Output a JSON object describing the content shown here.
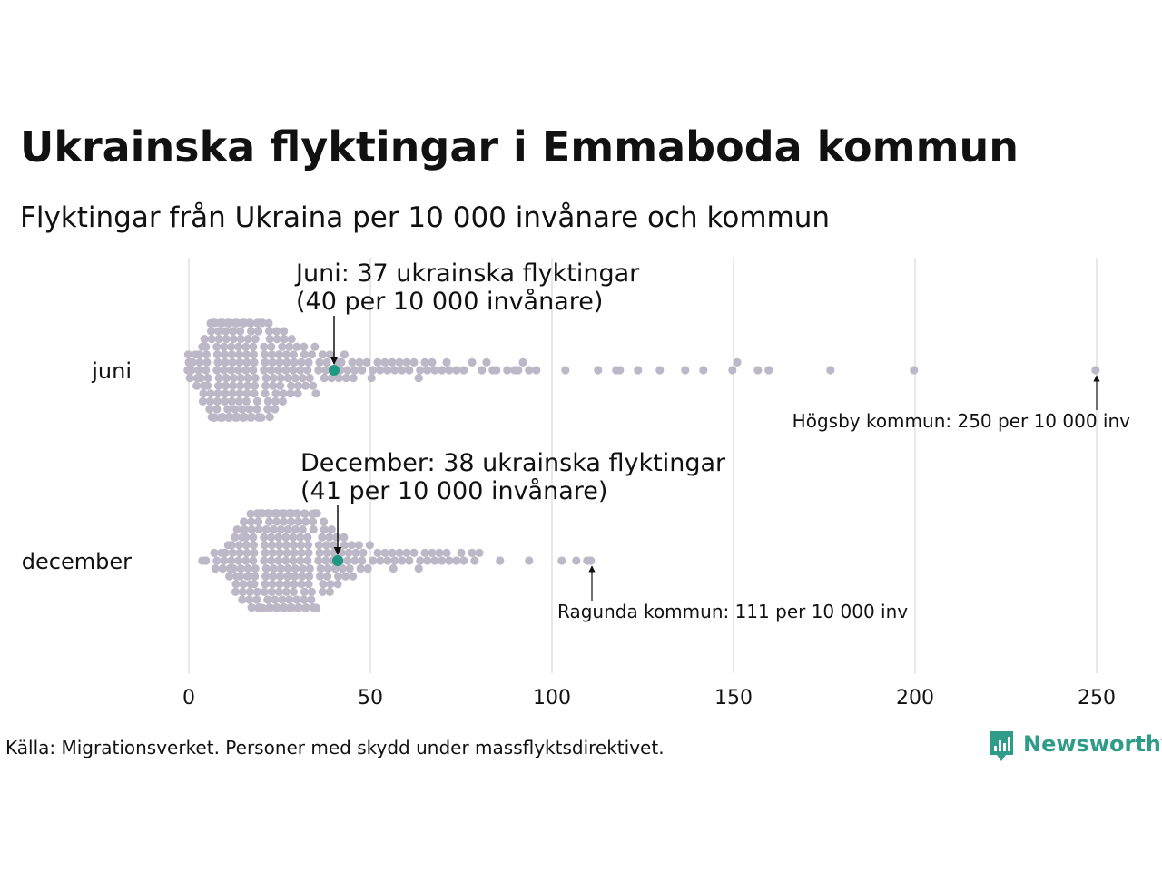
{
  "chart_data": {
    "type": "scatter",
    "title": "Ukrainska flyktingar i Emmaboda kommun",
    "subtitle": "Flyktingar från Ukraina per 10 000 invånare och kommun",
    "xlim": [
      0,
      250
    ],
    "xticks": [
      0,
      50,
      100,
      150,
      200,
      250
    ],
    "grid": true,
    "categories": [
      "juni",
      "december"
    ],
    "colors": {
      "dots": "#bcb8c8",
      "highlight": "#1e9a84",
      "grid": "#d0d0d0"
    },
    "series": [
      {
        "category": "juni",
        "highlight_value": 40,
        "highlight_label_line1": "Juni: 37 ukrainska flyktingar",
        "highlight_label_line2": "(40 per 10 000 invånare)",
        "extreme_value": 250,
        "extreme_label": "Högsby kommun: 250 per 10 000 inv",
        "values": [
          0,
          0,
          0,
          0,
          1,
          1,
          2,
          2,
          2,
          3,
          3,
          3,
          3,
          4,
          4,
          4,
          4,
          4,
          5,
          5,
          5,
          5,
          5,
          5,
          6,
          6,
          6,
          6,
          6,
          6,
          6,
          7,
          7,
          7,
          7,
          7,
          7,
          7,
          7,
          8,
          8,
          8,
          8,
          8,
          8,
          8,
          8,
          8,
          8,
          8,
          9,
          9,
          9,
          9,
          9,
          9,
          9,
          9,
          9,
          9,
          10,
          10,
          10,
          10,
          10,
          10,
          10,
          10,
          10,
          10,
          11,
          11,
          11,
          11,
          11,
          11,
          11,
          11,
          11,
          12,
          12,
          12,
          12,
          12,
          12,
          12,
          12,
          12,
          12,
          13,
          13,
          13,
          13,
          13,
          13,
          13,
          13,
          13,
          14,
          14,
          14,
          14,
          14,
          14,
          14,
          14,
          14,
          14,
          15,
          15,
          15,
          15,
          15,
          15,
          15,
          15,
          15,
          16,
          16,
          16,
          16,
          16,
          16,
          16,
          16,
          16,
          17,
          17,
          17,
          17,
          17,
          17,
          17,
          17,
          18,
          18,
          18,
          18,
          18,
          18,
          18,
          18,
          19,
          19,
          19,
          19,
          19,
          19,
          19,
          20,
          20,
          20,
          20,
          20,
          20,
          20,
          21,
          21,
          21,
          21,
          21,
          21,
          21,
          22,
          22,
          22,
          22,
          22,
          22,
          23,
          23,
          23,
          23,
          23,
          23,
          24,
          24,
          24,
          24,
          24,
          25,
          25,
          25,
          25,
          25,
          26,
          26,
          26,
          26,
          26,
          27,
          27,
          27,
          27,
          28,
          28,
          28,
          28,
          29,
          29,
          29,
          29,
          30,
          30,
          30,
          31,
          31,
          31,
          32,
          32,
          32,
          33,
          33,
          33,
          34,
          34,
          35,
          35,
          36,
          36,
          37,
          37,
          38,
          38,
          39,
          39,
          40,
          41,
          41,
          42,
          42,
          43,
          43,
          44,
          45,
          45,
          46,
          47,
          48,
          49,
          50,
          51,
          52,
          53,
          54,
          55,
          56,
          57,
          58,
          59,
          60,
          61,
          62,
          63,
          64,
          65,
          66,
          67,
          68,
          70,
          71,
          72,
          74,
          76,
          78,
          81,
          82,
          84,
          85,
          88,
          90,
          91,
          92,
          94,
          96,
          104,
          113,
          118,
          119,
          124,
          130,
          137,
          142,
          150,
          151,
          157,
          160,
          177,
          200,
          250
        ]
      },
      {
        "category": "december",
        "highlight_value": 41,
        "highlight_label_line1": "December: 38 ukrainska flyktingar",
        "highlight_label_line2": "(41 per 10 000 invånare)",
        "extreme_value": 111,
        "extreme_label": "Ragunda kommun: 111 per 10 000 inv",
        "values": [
          4,
          5,
          7,
          7,
          8,
          9,
          9,
          10,
          10,
          11,
          11,
          11,
          12,
          12,
          12,
          12,
          13,
          13,
          13,
          13,
          13,
          14,
          14,
          14,
          14,
          14,
          15,
          15,
          15,
          15,
          15,
          15,
          16,
          16,
          16,
          16,
          16,
          16,
          17,
          17,
          17,
          17,
          17,
          17,
          17,
          18,
          18,
          18,
          18,
          18,
          18,
          18,
          19,
          19,
          19,
          19,
          19,
          19,
          19,
          19,
          20,
          20,
          20,
          20,
          20,
          20,
          20,
          20,
          21,
          21,
          21,
          21,
          21,
          21,
          21,
          21,
          21,
          22,
          22,
          22,
          22,
          22,
          22,
          22,
          22,
          22,
          23,
          23,
          23,
          23,
          23,
          23,
          23,
          23,
          23,
          24,
          24,
          24,
          24,
          24,
          24,
          24,
          24,
          24,
          25,
          25,
          25,
          25,
          25,
          25,
          25,
          25,
          25,
          26,
          26,
          26,
          26,
          26,
          26,
          26,
          26,
          26,
          27,
          27,
          27,
          27,
          27,
          27,
          27,
          27,
          27,
          28,
          28,
          28,
          28,
          28,
          28,
          28,
          28,
          28,
          28,
          29,
          29,
          29,
          29,
          29,
          29,
          29,
          29,
          29,
          30,
          30,
          30,
          30,
          30,
          30,
          30,
          30,
          31,
          31,
          31,
          31,
          31,
          31,
          31,
          31,
          32,
          32,
          32,
          32,
          32,
          32,
          32,
          33,
          33,
          33,
          33,
          33,
          33,
          33,
          34,
          34,
          34,
          34,
          34,
          34,
          35,
          35,
          35,
          35,
          35,
          35,
          36,
          36,
          36,
          36,
          36,
          37,
          37,
          37,
          37,
          37,
          38,
          38,
          38,
          38,
          38,
          39,
          39,
          39,
          39,
          40,
          40,
          40,
          40,
          41,
          41,
          41,
          42,
          42,
          42,
          43,
          43,
          43,
          44,
          44,
          44,
          45,
          45,
          46,
          46,
          47,
          47,
          48,
          48,
          49,
          50,
          51,
          52,
          53,
          54,
          55,
          56,
          56,
          57,
          58,
          59,
          60,
          61,
          62,
          63,
          64,
          65,
          66,
          67,
          68,
          69,
          70,
          71,
          72,
          74,
          75,
          76,
          78,
          79,
          80,
          86,
          94,
          103,
          107,
          110,
          111
        ]
      }
    ],
    "source": "Källa: Migrationsverket. Personer med skydd under massflyktsdirektivet.",
    "brand": "Newsworthy"
  }
}
